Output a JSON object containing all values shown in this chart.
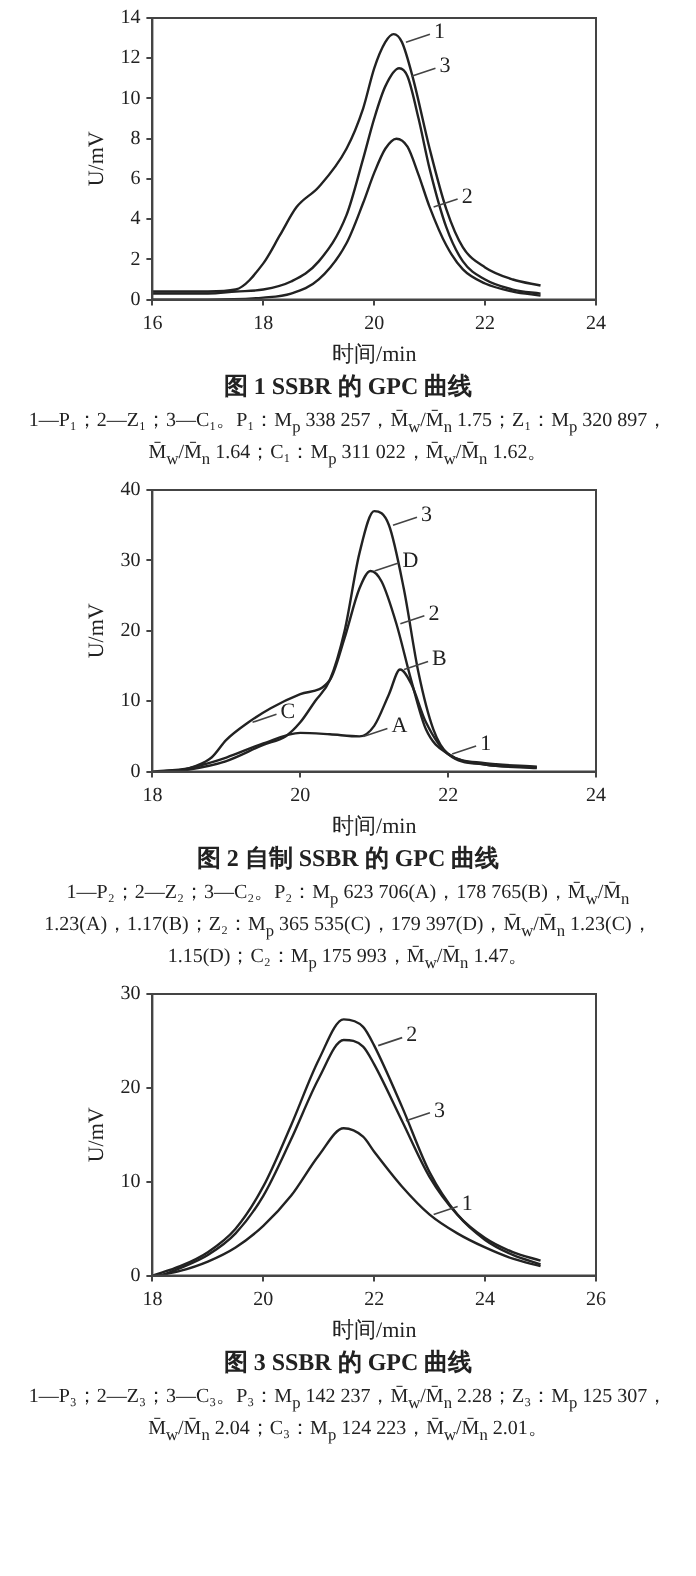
{
  "chart_data": [
    {
      "type": "line",
      "title": "图 1 SSBR 的 GPC 曲线",
      "xlabel": "时间/min",
      "ylabel": "U/mV",
      "xlim": [
        16,
        24
      ],
      "xticks": [
        16,
        18,
        20,
        22,
        24
      ],
      "ylim": [
        0,
        14
      ],
      "yticks": [
        0,
        2,
        4,
        6,
        8,
        10,
        12,
        14
      ],
      "grid": false,
      "legend": false,
      "marker": "none",
      "line_style": "solid",
      "series": [
        {
          "color": "#222222",
          "x": [
            16,
            17,
            17.5,
            18,
            18.3,
            18.6,
            19,
            19.5,
            19.8,
            20,
            20.2,
            20.35,
            20.5,
            20.7,
            21,
            21.3,
            21.6,
            22,
            22.5,
            23
          ],
          "values": [
            0.4,
            0.4,
            0.5,
            1.8,
            3.2,
            4.6,
            5.6,
            7.5,
            9.5,
            11.5,
            12.8,
            13.2,
            12.8,
            11,
            7.5,
            4.5,
            2.6,
            1.6,
            1.0,
            0.7
          ]
        },
        {
          "color": "#222222",
          "x": [
            16,
            17,
            18,
            18.5,
            19,
            19.5,
            19.8,
            20,
            20.2,
            20.4,
            20.6,
            20.8,
            21,
            21.3,
            21.6,
            22,
            22.5,
            23
          ],
          "values": [
            0,
            0,
            0.1,
            0.3,
            1.0,
            2.8,
            4.8,
            6.3,
            7.5,
            8.0,
            7.6,
            6.2,
            4.6,
            2.7,
            1.5,
            0.8,
            0.4,
            0.2
          ]
        },
        {
          "color": "#222222",
          "x": [
            16,
            17,
            17.5,
            18,
            18.5,
            19,
            19.5,
            19.8,
            20,
            20.2,
            20.45,
            20.6,
            20.8,
            21,
            21.3,
            21.6,
            22,
            22.5,
            23
          ],
          "values": [
            0.3,
            0.3,
            0.4,
            0.5,
            0.9,
            1.9,
            4.2,
            7,
            9,
            10.6,
            11.5,
            11.1,
            9,
            6.5,
            3.6,
            1.9,
            1.0,
            0.5,
            0.3
          ]
        }
      ],
      "annotations": [
        {
          "text": "1",
          "x": 20.5,
          "y": 12.8
        },
        {
          "text": "3",
          "x": 20.6,
          "y": 11.1
        },
        {
          "text": "2",
          "x": 21,
          "y": 4.6
        },
        "1—P₁；2—Z₁；3—C₁。P₁：M$_{p}$ 338 257，M̄$_{w}$/M̄$_{n}$ 1.75；Z₁：M$_{p}$ 320 897，M̄$_{w}$/M̄$_{n}$ 1.64；C₁：M$_{p}$ 311 022，M̄$_{w}$/M̄$_{n}$ 1.62。"
      ]
    },
    {
      "type": "line",
      "title": "图 2 自制 SSBR 的 GPC 曲线",
      "xlabel": "时间/min",
      "ylabel": "U/mV",
      "xlim": [
        18,
        24
      ],
      "xticks": [
        18,
        20,
        22,
        24
      ],
      "ylim": [
        0,
        40
      ],
      "yticks": [
        0,
        10,
        20,
        30,
        40
      ],
      "grid": false,
      "legend": false,
      "marker": "none",
      "line_style": "solid",
      "series": [
        {
          "color": "#222222",
          "x": [
            18,
            18.5,
            19,
            19.5,
            20,
            20.4,
            20.8,
            21,
            21.2,
            21.35,
            21.5,
            21.7,
            22,
            22.5,
            23.2
          ],
          "values": [
            0,
            0.5,
            2,
            4,
            5.5,
            5.3,
            5,
            6.5,
            11,
            14.5,
            12.5,
            7,
            2.5,
            1.2,
            0.7
          ]
        },
        {
          "color": "#222222",
          "x": [
            18.1,
            18.5,
            18.8,
            19,
            19.3,
            19.6,
            20,
            20.4,
            20.6,
            20.8,
            20.95,
            21.1,
            21.3,
            21.5,
            21.7,
            22,
            22.5,
            23.2
          ],
          "values": [
            0,
            0.5,
            2,
            4.5,
            7,
            9,
            11,
            13,
            19,
            26,
            28.5,
            27,
            21,
            13,
            6,
            2.5,
            1,
            0.6
          ]
        },
        {
          "color": "#222222",
          "x": [
            18.2,
            18.5,
            19,
            19.5,
            19.8,
            20,
            20.2,
            20.4,
            20.6,
            20.8,
            21,
            21.2,
            21.4,
            21.6,
            21.8,
            22,
            22.5,
            23.2
          ],
          "values": [
            0,
            0.3,
            1.5,
            3.8,
            5,
            7,
            10,
            13,
            20,
            31,
            37,
            35,
            26,
            14,
            6,
            2.5,
            1,
            0.5
          ]
        }
      ],
      "annotations": [
        {
          "text": "3",
          "x": 21.2,
          "y": 35
        },
        {
          "text": "2",
          "x": 21.3,
          "y": 21
        },
        {
          "text": "1",
          "x": 22,
          "y": 2.5
        },
        {
          "text": "D",
          "x": 20.95,
          "y": 28.5
        },
        {
          "text": "C",
          "x": 19.3,
          "y": 7
        },
        {
          "text": "A",
          "x": 20.8,
          "y": 5
        },
        {
          "text": "B",
          "x": 21.35,
          "y": 14.5
        },
        "1—P₂；2—Z₂；3—C₂。P₂：M$_{p}$ 623 706(A)，178 765(B)，M̄$_{w}$/M̄$_{n}$ 1.23(A)，1.17(B)；Z₂：M$_{p}$ 365 535(C)，179 397(D)，M̄$_{w}$/M̄$_{n}$ 1.23(C)，1.15(D)；C₂：M$_{p}$ 175 993，M̄$_{w}$/M̄$_{n}$ 1.47。"
      ]
    },
    {
      "type": "line",
      "title": "图 3 SSBR 的 GPC 曲线",
      "xlabel": "时间/min",
      "ylabel": "U/mV",
      "xlim": [
        18,
        26
      ],
      "xticks": [
        18,
        20,
        22,
        24,
        26
      ],
      "ylim": [
        0,
        30
      ],
      "yticks": [
        0,
        10,
        20,
        30
      ],
      "grid": false,
      "legend": false,
      "marker": "none",
      "line_style": "solid",
      "series": [
        {
          "color": "#222222",
          "x": [
            18.1,
            18.5,
            19,
            19.5,
            20,
            20.5,
            21,
            21.45,
            21.8,
            22,
            22.5,
            23,
            23.5,
            24,
            24.5,
            25
          ],
          "values": [
            0,
            0.5,
            1.5,
            3,
            5.3,
            8.5,
            12.8,
            15.7,
            14.8,
            13.2,
            9.5,
            6.5,
            4.5,
            3,
            1.8,
            1.0
          ]
        },
        {
          "color": "#222222",
          "x": [
            18,
            18.5,
            19,
            19.5,
            20,
            20.5,
            21,
            21.45,
            21.8,
            22,
            22.5,
            23,
            23.5,
            24,
            24.5,
            25
          ],
          "values": [
            0,
            1,
            2.5,
            5,
            9.5,
            16,
            23,
            27.3,
            26.5,
            24.5,
            18,
            11,
            6.5,
            3.8,
            2.2,
            1.2
          ]
        },
        {
          "color": "#222222",
          "x": [
            18.2,
            18.5,
            19,
            19.5,
            20,
            20.5,
            21,
            21.45,
            21.8,
            22,
            22.5,
            23,
            23.5,
            24,
            24.5,
            25
          ],
          "values": [
            0.1,
            0.8,
            2.2,
            4.5,
            8.5,
            14.5,
            21,
            25.1,
            24.4,
            22.5,
            16.5,
            10.5,
            6.5,
            4,
            2.5,
            1.6
          ]
        }
      ],
      "annotations": [
        {
          "text": "2",
          "x": 22,
          "y": 24.5
        },
        {
          "text": "3",
          "x": 22.5,
          "y": 16.5
        },
        {
          "text": "1",
          "x": 23,
          "y": 6.5
        },
        "1—P₃；2—Z₃；3—C₃。P₃：M$_{p}$ 142 237，M̄$_{w}$/M̄$_{n}$ 2.28；Z₃：M$_{p}$ 125 307，M̄$_{w}$/M̄$_{n}$ 2.04；C₃：M$_{p}$ 124 223，M̄$_{w}$/M̄$_{n}$ 2.01。"
      ]
    }
  ]
}
